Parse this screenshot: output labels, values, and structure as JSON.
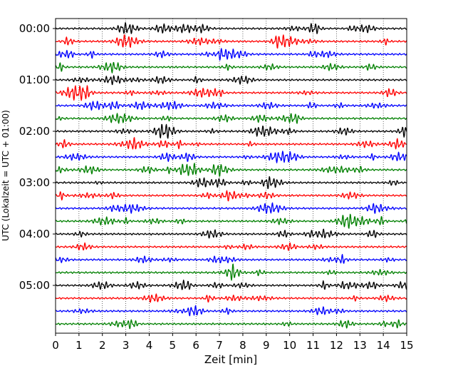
{
  "chart_data": {
    "type": "line",
    "title": "",
    "xlabel": "Zeit  [min]",
    "ylabel": "UTC (Lokalzeit = UTC + 01:00)",
    "xlim": [
      0,
      15
    ],
    "x_ticks": [
      "0",
      "1",
      "2",
      "3",
      "4",
      "5",
      "6",
      "7",
      "8",
      "9",
      "10",
      "11",
      "12",
      "13",
      "14",
      "15"
    ],
    "y_tick_labels": [
      "00:00",
      "01:00",
      "02:00",
      "03:00",
      "04:00",
      "05:00"
    ],
    "row_interval_minutes": 15,
    "row_count": 24,
    "row_colors": [
      "#000000",
      "#ff0000",
      "#0000ff",
      "#008000"
    ],
    "grid": "vertical dotted",
    "legend": "none"
  }
}
